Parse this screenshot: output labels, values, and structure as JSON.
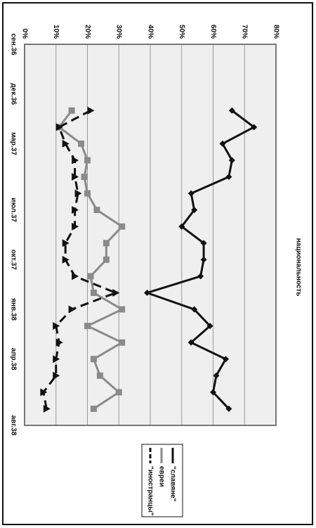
{
  "chart_data": {
    "type": "line",
    "title": "национальность",
    "categories": [
      "сен.36",
      null,
      null,
      "дек.36",
      null,
      null,
      "мар.37",
      null,
      null,
      null,
      "июл.37",
      null,
      null,
      "окт.37",
      null,
      null,
      "янв.38",
      null,
      null,
      "апр.38",
      null,
      null,
      null,
      "авг.38"
    ],
    "series": [
      {
        "name": "\"славяне\"",
        "color": "#111111",
        "marker": "diamond",
        "line_style": "solid",
        "values": [
          null,
          null,
          null,
          null,
          66,
          73,
          63,
          66,
          65,
          53,
          54,
          50,
          57,
          57,
          56,
          39,
          54,
          59,
          53,
          64,
          61,
          60,
          65,
          null
        ]
      },
      {
        "name": "евреи",
        "color": "#8a8a8a",
        "marker": "square",
        "line_style": "solid",
        "values": [
          null,
          null,
          null,
          null,
          15,
          11,
          18,
          20,
          19,
          20,
          23,
          31,
          26,
          26,
          21,
          22,
          31,
          20,
          31,
          22,
          24,
          30,
          22,
          null
        ]
      },
      {
        "name": "\"иностранцы\"",
        "color": "#111111",
        "marker": "triangle",
        "line_style": "dashed",
        "values": [
          null,
          null,
          null,
          null,
          21,
          11,
          13,
          16,
          16,
          17,
          16,
          16,
          13,
          13,
          16,
          29,
          15,
          10,
          11,
          10,
          10,
          6,
          7,
          null
        ]
      }
    ],
    "ylim": [
      0,
      80
    ],
    "yticks": [
      {
        "value": 0,
        "label": "0%"
      },
      {
        "value": 10,
        "label": "10%"
      },
      {
        "value": 20,
        "label": "20%"
      },
      {
        "value": 30,
        "label": "30%"
      },
      {
        "value": 40,
        "label": "40%"
      },
      {
        "value": 50,
        "label": "50%"
      },
      {
        "value": 60,
        "label": "60%"
      },
      {
        "value": 70,
        "label": "70%"
      },
      {
        "value": 80,
        "label": "80%"
      }
    ],
    "grid": true,
    "legend": "bottom-right"
  }
}
